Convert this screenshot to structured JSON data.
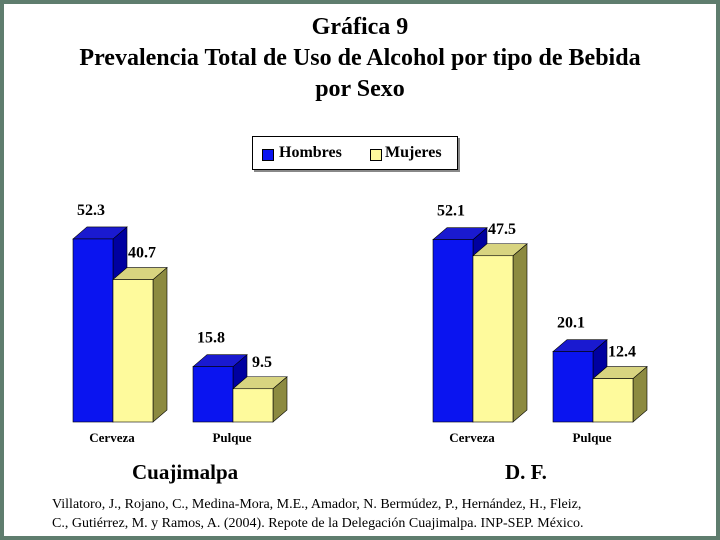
{
  "title": {
    "line1": "Gráfica 9",
    "line2": "Prevalencia Total de Uso de Alcohol por tipo de Bebida",
    "line3": "por Sexo"
  },
  "colors": {
    "hombres": "#0a14f0",
    "mujeres": "#fefa9c",
    "frame": "#5f7d6e"
  },
  "chart_data": {
    "type": "bar",
    "legend": [
      "Hombres",
      "Mujeres"
    ],
    "legend_position": "top-center",
    "grid": false,
    "groups": [
      {
        "name": "Cuajimalpa",
        "categories": [
          "Cerveza",
          "Pulque"
        ],
        "series": [
          {
            "name": "Hombres",
            "values": [
              52.3,
              15.8
            ]
          },
          {
            "name": "Mujeres",
            "values": [
              40.7,
              9.5
            ]
          }
        ]
      },
      {
        "name": "D. F.",
        "categories": [
          "Cerveza",
          "Pulque"
        ],
        "series": [
          {
            "name": "Hombres",
            "values": [
              52.1,
              20.1
            ]
          },
          {
            "name": "Mujeres",
            "values": [
              47.5,
              12.4
            ]
          }
        ]
      }
    ]
  },
  "source": {
    "line1": "Villatoro, J., Rojano, C., Medina-Mora, M.E., Amador, N. Bermúdez, P., Hernández, H., Fleiz,",
    "line2": "C., Gutiérrez, M. y Ramos, A. (2004). Repote de la Delegación Cuajimalpa. INP-SEP. México."
  }
}
